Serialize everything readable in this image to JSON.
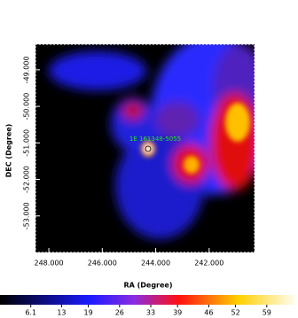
{
  "chart_data": {
    "type": "image",
    "xlabel": "RA (Degree)",
    "ylabel": "DEC (Degree)",
    "xlim": [
      248.5,
      240.3
    ],
    "xticks": [
      {
        "value": 248,
        "label": "248.000"
      },
      {
        "value": 246,
        "label": "246.000"
      },
      {
        "value": 244,
        "label": "244.000"
      },
      {
        "value": 242,
        "label": "242.000"
      }
    ],
    "ylim": [
      -54.0,
      -48.3
    ],
    "yticks": [
      {
        "value": -49,
        "label": "-49.000"
      },
      {
        "value": -50,
        "label": "-50.000"
      },
      {
        "value": -51,
        "label": "-51.000"
      },
      {
        "value": -52,
        "label": "-52.000"
      },
      {
        "value": -53,
        "label": "-53.000"
      }
    ],
    "annotation": "1E 161348-5055",
    "colorbar": {
      "clim": [
        -0.8,
        66
      ],
      "ticks": [
        6.1,
        13,
        19,
        26,
        33,
        39,
        46,
        52,
        59
      ]
    }
  }
}
